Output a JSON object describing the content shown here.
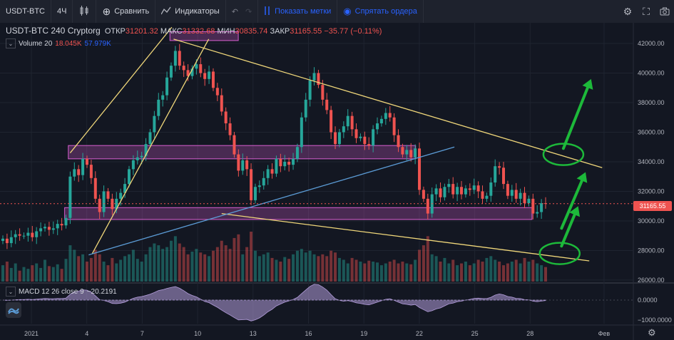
{
  "toolbar": {
    "symbol": "USDT-BTC",
    "interval": "4Ч",
    "compare": "Сравнить",
    "indicators": "Индикаторы",
    "show_marks": "Показать метки",
    "hide_orders": "Спрятать ордера"
  },
  "legend": {
    "title": "USDT-BTC  240  Cryptorg",
    "open_label": "ОТКР",
    "open": "31201.32",
    "high_label": "МАКС",
    "high": "31332.68",
    "low_label": "МИН",
    "low": "30835.74",
    "close_label": "ЗАКР",
    "close": "31165.55",
    "change": "−35.77 (−0.11%)"
  },
  "volume_legend": {
    "name": "Volume 20",
    "v1": "18.045K",
    "v2": "57.979K"
  },
  "macd_legend": {
    "name": "MACD 12 26 close 9",
    "value": "−20.2191",
    "v2": "",
    "v3": ""
  },
  "last_price": "31165.55",
  "colors": {
    "up": "#26a69a",
    "down": "#ef5350",
    "trend_yellow": "#f0d77a",
    "trend_blue": "#5b9bd5",
    "zone": "#d85fd1",
    "arrow": "#1db93a",
    "background": "#131722"
  },
  "chart_data": {
    "type": "candlestick",
    "symbol": "USDT-BTC",
    "interval": "240",
    "y_ticks": [
      26000,
      28000,
      30000,
      32000,
      34000,
      36000,
      38000,
      40000,
      42000
    ],
    "ylim": [
      25900,
      43400
    ],
    "x_ticks": [
      "2021",
      "4",
      "7",
      "10",
      "13",
      "16",
      "19",
      "22",
      "25",
      "28",
      "Фев"
    ],
    "x_tick_days": [
      1,
      4,
      7,
      10,
      13,
      16,
      19,
      22,
      25,
      28,
      32
    ],
    "macd_ticks": [
      "0.0000",
      "−1000.0000"
    ],
    "macd_tick_values": [
      0,
      -1000
    ],
    "closes": [
      28800,
      28500,
      28900,
      29100,
      29000,
      29000,
      29200,
      28900,
      29300,
      29500,
      29600,
      29400,
      29500,
      29800,
      29700,
      30200,
      33000,
      33500,
      33100,
      34200,
      33800,
      32900,
      31500,
      30600,
      32000,
      31500,
      30800,
      31500,
      31900,
      32500,
      33500,
      34100,
      34300,
      34400,
      35200,
      36000,
      37100,
      38200,
      38500,
      39700,
      40500,
      41500,
      40500,
      40200,
      39800,
      40300,
      40600,
      40000,
      39600,
      40100,
      39000,
      38500,
      37400,
      36600,
      35800,
      34500,
      33400,
      34100,
      33500,
      31400,
      32300,
      32400,
      32900,
      33500,
      33200,
      34200,
      33700,
      34000,
      33800,
      34200,
      35000,
      37000,
      38200,
      39500,
      40000,
      39200,
      38200,
      37500,
      36000,
      35200,
      36000,
      36400,
      37100,
      36200,
      35600,
      35700,
      35200,
      35100,
      36200,
      36600,
      36900,
      37300,
      37000,
      35800,
      35000,
      34500,
      34800,
      34300,
      34900,
      32100,
      31500,
      30500,
      31800,
      32200,
      31600,
      32300,
      32500,
      31800,
      32300,
      31800,
      32200,
      32100,
      32400,
      32000,
      31500,
      31700,
      32600,
      33700,
      33600,
      32500,
      31700,
      32100,
      31500,
      31900,
      31200,
      31500,
      30500,
      30600,
      31200,
      31166
    ],
    "volumes": [
      18,
      22,
      15,
      20,
      12,
      16,
      14,
      18,
      20,
      15,
      24,
      17,
      16,
      19,
      14,
      25,
      40,
      35,
      28,
      30,
      22,
      26,
      35,
      30,
      22,
      18,
      26,
      20,
      24,
      28,
      30,
      35,
      25,
      22,
      30,
      38,
      42,
      40,
      36,
      38,
      45,
      50,
      42,
      38,
      30,
      33,
      36,
      32,
      30,
      28,
      34,
      38,
      45,
      40,
      36,
      48,
      52,
      30,
      38,
      55,
      34,
      28,
      30,
      32,
      26,
      24,
      22,
      27,
      25,
      30,
      34,
      36,
      32,
      34,
      30,
      28,
      30,
      28,
      34,
      32,
      26,
      24,
      20,
      26,
      24,
      22,
      20,
      23,
      22,
      21,
      18,
      20,
      22,
      24,
      20,
      22,
      20,
      19,
      24,
      35,
      40,
      50,
      30,
      28,
      22,
      26,
      20,
      24,
      18,
      20,
      22,
      18,
      20,
      24,
      22,
      26,
      28,
      24,
      22,
      18,
      20,
      22,
      24,
      20,
      26,
      22,
      24,
      20,
      18,
      16
    ],
    "annotations": {
      "zones": [
        {
          "label": "supply_zone_top",
          "y_range": [
            42200,
            42800
          ],
          "x_range_days": [
            8.5,
            12.2
          ]
        },
        {
          "label": "resistance_zone",
          "y_range": [
            34200,
            35100
          ],
          "x_range_days": [
            3.0,
            21.8
          ]
        },
        {
          "label": "support_zone",
          "y_range": [
            30100,
            30900
          ],
          "x_range_days": [
            2.8,
            28.1
          ]
        }
      ],
      "trendlines": [
        {
          "color": "yellow",
          "from": [
            3.1,
            34600
          ],
          "to": [
            8.6,
            43100
          ]
        },
        {
          "color": "yellow",
          "from": [
            4.3,
            27800
          ],
          "to": [
            10.6,
            42300
          ]
        },
        {
          "color": "yellow",
          "from": [
            8.7,
            42300
          ],
          "to": [
            31.9,
            33600
          ]
        },
        {
          "color": "yellow",
          "from": [
            11.3,
            30500
          ],
          "to": [
            31.2,
            27300
          ]
        },
        {
          "color": "blue",
          "from": [
            4.1,
            27700
          ],
          "to": [
            23.9,
            35000
          ]
        }
      ],
      "circles": [
        {
          "center": [
            29.8,
            34500
          ]
        },
        {
          "center": [
            29.6,
            27800
          ]
        }
      ],
      "arrows": [
        {
          "from": [
            29.8,
            34900
          ],
          "to": [
            31.3,
            39600
          ]
        },
        {
          "from": [
            29.7,
            29500
          ],
          "to": [
            31.0,
            33300
          ]
        },
        {
          "from": [
            29.7,
            28300
          ],
          "to": [
            30.6,
            31000
          ]
        }
      ]
    }
  }
}
